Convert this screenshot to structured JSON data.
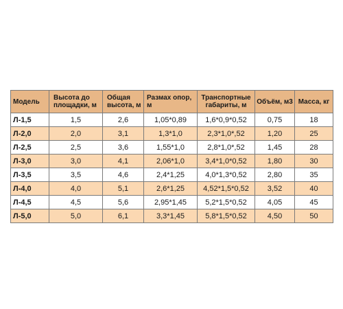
{
  "colors": {
    "header_bg": "#e8b787",
    "row_alt_bg": "#fbd8b2",
    "row_bg": "#ffffff",
    "border": "#7a7a7a"
  },
  "table": {
    "headers": {
      "model": "Модель",
      "platform_height": "Высота до площадки, м",
      "total_height": "Общая высота, м",
      "support_span": "Размах опор, м",
      "transport_dims": "Транспортные габариты, м",
      "volume": "Объём, м3",
      "mass": "Масса, кг"
    },
    "rows": [
      {
        "model": "Л-1,5",
        "platform_height": "1,5",
        "total_height": "2,6",
        "support_span": "1,05*0,89",
        "transport_dims": "1,6*0,9*0,52",
        "volume": "0,75",
        "mass": "18"
      },
      {
        "model": "Л-2,0",
        "platform_height": "2,0",
        "total_height": "3,1",
        "support_span": "1,3*1,0",
        "transport_dims": "2,3*1,0*,52",
        "volume": "1,20",
        "mass": "25"
      },
      {
        "model": "Л-2,5",
        "platform_height": "2,5",
        "total_height": "3,6",
        "support_span": "1,55*1,0",
        "transport_dims": "2,8*1,0*,52",
        "volume": "1,45",
        "mass": "28"
      },
      {
        "model": "Л-3,0",
        "platform_height": "3,0",
        "total_height": "4,1",
        "support_span": "2,06*1,0",
        "transport_dims": "3,4*1,0*0,52",
        "volume": "1,80",
        "mass": "30"
      },
      {
        "model": "Л-3,5",
        "platform_height": "3,5",
        "total_height": "4,6",
        "support_span": "2,4*1,25",
        "transport_dims": "4,0*1,3*0,52",
        "volume": "2,80",
        "mass": "35"
      },
      {
        "model": "Л-4,0",
        "platform_height": "4,0",
        "total_height": "5,1",
        "support_span": "2,6*1,25",
        "transport_dims": "4,52*1,5*0,52",
        "volume": "3,52",
        "mass": "40"
      },
      {
        "model": "Л-4,5",
        "platform_height": "4,5",
        "total_height": "5,6",
        "support_span": "2,95*1,45",
        "transport_dims": "5,2*1,5*0,52",
        "volume": "4,05",
        "mass": "45"
      },
      {
        "model": "Л-5,0",
        "platform_height": "5,0",
        "total_height": "6,1",
        "support_span": "3,3*1,45",
        "transport_dims": "5,8*1,5*0,52",
        "volume": "4,50",
        "mass": "50"
      }
    ]
  }
}
